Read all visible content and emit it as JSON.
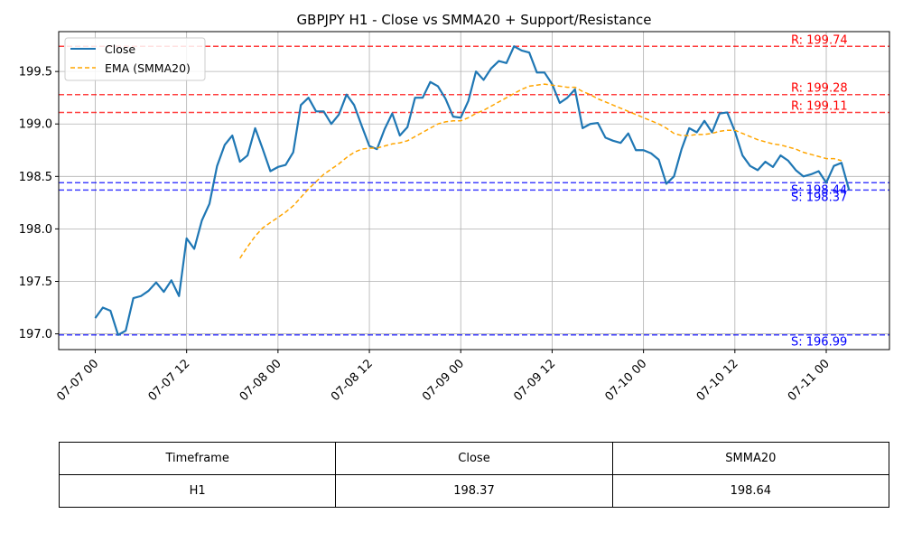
{
  "chart_data": {
    "type": "line",
    "title": "GBPJPY H1 - Close vs SMMA20 + Support/Resistance",
    "x_tick_labels": [
      "07-07 00",
      "07-07 12",
      "07-08 00",
      "07-08 12",
      "07-09 00",
      "07-09 12",
      "07-10 00",
      "07-10 12",
      "07-11 00"
    ],
    "y_ticks": [
      197.0,
      197.5,
      198.0,
      198.5,
      199.0,
      199.5
    ],
    "y_tick_labels": [
      "197.0",
      "197.5",
      "198.0",
      "198.5",
      "199.0",
      "199.5"
    ],
    "ylim": [
      196.85,
      199.88
    ],
    "x_unit": "hours since 07-07 00",
    "xlim": [
      -4.8,
      104.3
    ],
    "grid": true,
    "legend_position": "top-left",
    "series": [
      {
        "name": "Close",
        "color": "#1f77b4",
        "style": "solid",
        "start_hour": 0,
        "values": [
          197.15,
          197.25,
          197.22,
          196.99,
          197.03,
          197.34,
          197.36,
          197.41,
          197.49,
          197.4,
          197.51,
          197.36,
          197.91,
          197.81,
          198.08,
          198.24,
          198.6,
          198.8,
          198.89,
          198.64,
          198.7,
          198.96,
          198.76,
          198.55,
          198.59,
          198.61,
          198.73,
          199.18,
          199.25,
          199.12,
          199.12,
          199.0,
          199.09,
          199.28,
          199.18,
          198.98,
          198.79,
          198.76,
          198.95,
          199.1,
          198.89,
          198.97,
          199.25,
          199.25,
          199.4,
          199.36,
          199.24,
          199.07,
          199.06,
          199.22,
          199.5,
          199.42,
          199.53,
          199.6,
          199.58,
          199.74,
          199.7,
          199.68,
          199.49,
          199.49,
          199.38,
          199.2,
          199.25,
          199.33,
          198.96,
          199.0,
          199.01,
          198.87,
          198.84,
          198.82,
          198.91,
          198.75,
          198.75,
          198.72,
          198.66,
          198.43,
          198.5,
          198.76,
          198.96,
          198.92,
          199.03,
          198.92,
          199.1,
          199.11,
          198.93,
          198.7,
          198.6,
          198.56,
          198.64,
          198.59,
          198.7,
          198.65,
          198.56,
          198.5,
          198.52,
          198.55,
          198.44,
          198.6,
          198.63,
          198.37
        ]
      },
      {
        "name": "EMA (SMMA20)",
        "color": "#ffa500",
        "style": "dashed",
        "start_hour": 19,
        "values": [
          197.72,
          197.83,
          197.93,
          198.01,
          198.06,
          198.11,
          198.16,
          198.22,
          198.3,
          198.38,
          198.45,
          198.52,
          198.57,
          198.62,
          198.68,
          198.73,
          198.76,
          198.77,
          198.77,
          198.79,
          198.81,
          198.82,
          198.84,
          198.88,
          198.92,
          198.96,
          199.0,
          199.02,
          199.03,
          199.03,
          199.06,
          199.1,
          199.13,
          199.17,
          199.21,
          199.25,
          199.29,
          199.33,
          199.36,
          199.37,
          199.38,
          199.37,
          199.36,
          199.35,
          199.35,
          199.31,
          199.28,
          199.24,
          199.21,
          199.18,
          199.15,
          199.12,
          199.09,
          199.06,
          199.03,
          199.0,
          198.96,
          198.91,
          198.89,
          198.89,
          198.9,
          198.9,
          198.91,
          198.93,
          198.94,
          198.94,
          198.91,
          198.88,
          198.85,
          198.83,
          198.81,
          198.8,
          198.78,
          198.76,
          198.73,
          198.71,
          198.69,
          198.67,
          198.67,
          198.65
        ]
      }
    ],
    "levels": [
      {
        "kind": "resistance",
        "value": 199.74,
        "label": "R: 199.74",
        "color": "#ff0000"
      },
      {
        "kind": "resistance",
        "value": 199.28,
        "label": "R: 199.28",
        "color": "#ff0000"
      },
      {
        "kind": "resistance",
        "value": 199.11,
        "label": "R: 199.11",
        "color": "#ff0000"
      },
      {
        "kind": "support",
        "value": 198.44,
        "label": "S: 198.44",
        "color": "#0000ff"
      },
      {
        "kind": "support",
        "value": 198.37,
        "label": "S: 198.37",
        "color": "#0000ff"
      },
      {
        "kind": "support",
        "value": 196.99,
        "label": "S: 196.99",
        "color": "#0000ff"
      }
    ]
  },
  "table": {
    "headers": [
      "Timeframe",
      "Close",
      "SMMA20"
    ],
    "rows": [
      [
        "H1",
        "198.37",
        "198.64"
      ]
    ]
  }
}
